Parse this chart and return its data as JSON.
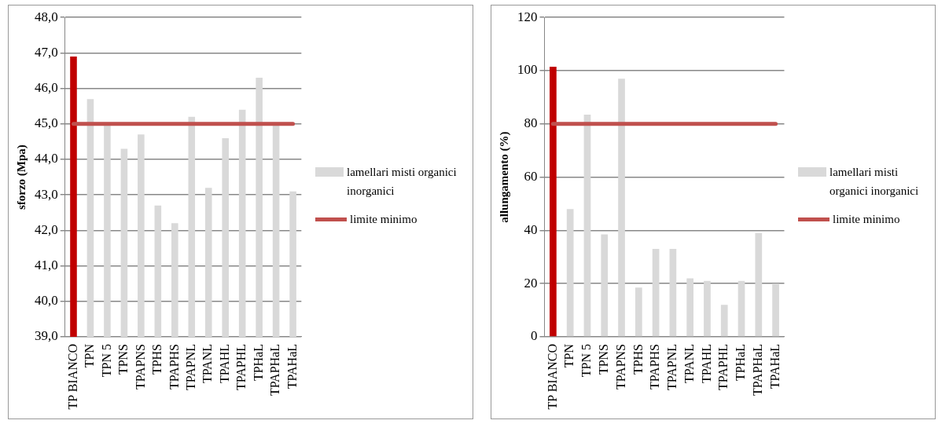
{
  "chart_data": [
    {
      "type": "bar",
      "ylabel": "sforzo (Mpa)",
      "categories": [
        "TP BIANCO",
        "TPN",
        "TPN 5",
        "TPNS",
        "TPAPNS",
        "TPHS",
        "TPAPHS",
        "TPAPNL",
        "TPANL",
        "TPAHL",
        "TPAPHL",
        "TPHaL",
        "TPAPHaL",
        "TPAHaL"
      ],
      "series": [
        {
          "name": "lamellari misti organici inorganici",
          "color": "#d9d9d9",
          "colors": [
            "#c00000",
            "#d9d9d9",
            "#d9d9d9",
            "#d9d9d9",
            "#d9d9d9",
            "#d9d9d9",
            "#d9d9d9",
            "#d9d9d9",
            "#d9d9d9",
            "#d9d9d9",
            "#d9d9d9",
            "#d9d9d9",
            "#d9d9d9",
            "#d9d9d9"
          ],
          "values": [
            46.9,
            45.7,
            45.0,
            44.3,
            44.7,
            42.7,
            42.2,
            45.2,
            43.2,
            44.6,
            45.4,
            46.3,
            45.0,
            43.1
          ]
        },
        {
          "name": "limite minimo",
          "type": "line",
          "color": "#c0504d",
          "values": [
            45,
            45,
            45,
            45,
            45,
            45,
            45,
            45,
            45,
            45,
            45,
            45,
            45,
            45
          ]
        }
      ],
      "ylim": [
        39,
        48
      ],
      "yticks": [
        {
          "value": 39,
          "label": "39,0"
        },
        {
          "value": 40,
          "label": "40,0"
        },
        {
          "value": 41,
          "label": "41,0"
        },
        {
          "value": 42,
          "label": "42,0"
        },
        {
          "value": 43,
          "label": "43,0"
        },
        {
          "value": 44,
          "label": "44,0"
        },
        {
          "value": 45,
          "label": "45,0"
        },
        {
          "value": 46,
          "label": "46,0"
        },
        {
          "value": 47,
          "label": "47,0"
        },
        {
          "value": 48,
          "label": "48,0"
        }
      ],
      "grid": "y",
      "legend": "right",
      "marker": "none"
    },
    {
      "type": "bar",
      "ylabel": "allungamento (%)",
      "categories": [
        "TP BIANCO",
        "TPN",
        "TPN 5",
        "TPNS",
        "TPAPNS",
        "TPHS",
        "TPAPHS",
        "TPAPNL",
        "TPANL",
        "TPAHL",
        "TPAPHL",
        "TPHaL",
        "TPAPHaL",
        "TPAHaL"
      ],
      "series": [
        {
          "name": "lamellari misti organici inorganici",
          "color": "#d9d9d9",
          "colors": [
            "#c00000",
            "#d9d9d9",
            "#d9d9d9",
            "#d9d9d9",
            "#d9d9d9",
            "#d9d9d9",
            "#d9d9d9",
            "#d9d9d9",
            "#d9d9d9",
            "#d9d9d9",
            "#d9d9d9",
            "#d9d9d9",
            "#d9d9d9",
            "#d9d9d9"
          ],
          "values": [
            101.5,
            48,
            83.5,
            38.5,
            97,
            18.5,
            33,
            33,
            22,
            21,
            12,
            21,
            39,
            20
          ]
        },
        {
          "name": "limite minimo",
          "type": "line",
          "color": "#c0504d",
          "values": [
            80,
            80,
            80,
            80,
            80,
            80,
            80,
            80,
            80,
            80,
            80,
            80,
            80,
            80
          ]
        }
      ],
      "ylim": [
        0,
        120
      ],
      "yticks": [
        0,
        20,
        40,
        60,
        80,
        100,
        120
      ],
      "grid": "y",
      "legend": "right",
      "marker": "none"
    }
  ]
}
